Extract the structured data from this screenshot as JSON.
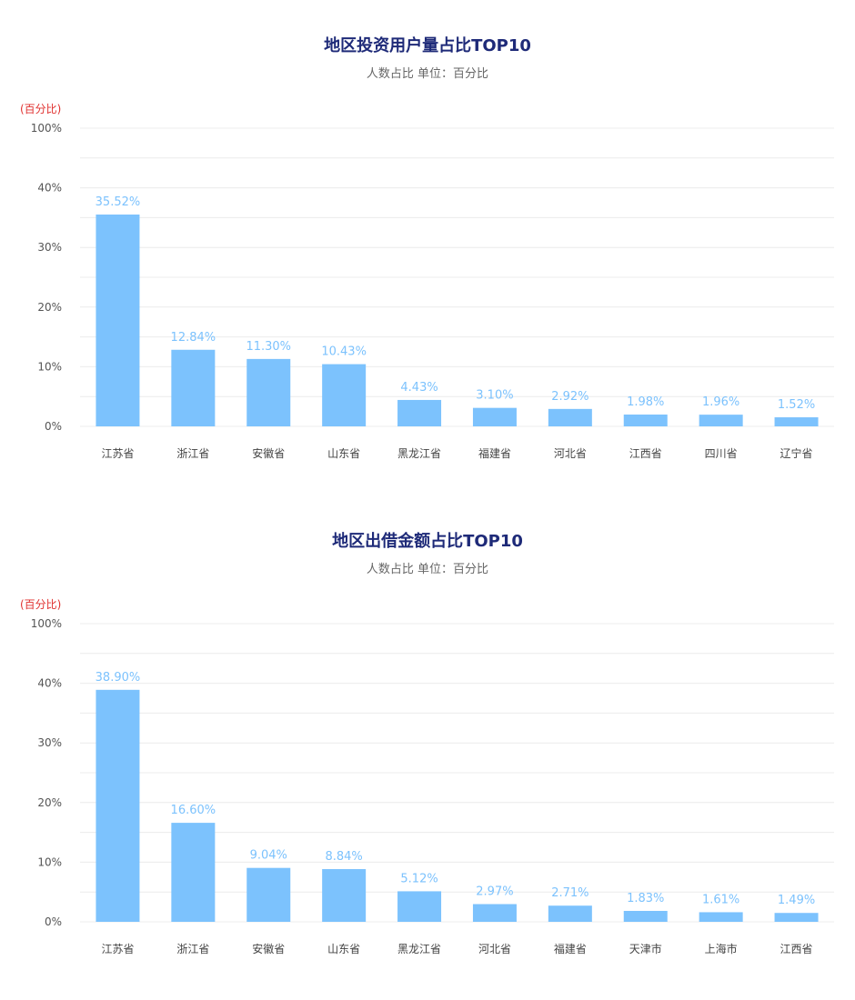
{
  "colors": {
    "bar": "#7cc2fd",
    "value_label": "#7cc2fd",
    "grid": "#ececec",
    "unit": "#e0312f",
    "title": "#1e2a78"
  },
  "chart_data": [
    {
      "type": "bar",
      "title": "地区投资用户量占比TOP10",
      "subtitle": "人数占比 单位：百分比",
      "unit_label": "(百分比)",
      "y_ticks": [
        "0%",
        "10%",
        "20%",
        "30%",
        "40%",
        "100%"
      ],
      "categories": [
        "江苏省",
        "浙江省",
        "安徽省",
        "山东省",
        "黑龙江省",
        "福建省",
        "河北省",
        "江西省",
        "四川省",
        "辽宁省"
      ],
      "values": [
        35.52,
        12.84,
        11.3,
        10.43,
        4.43,
        3.1,
        2.92,
        1.98,
        1.96,
        1.52
      ],
      "value_labels": [
        "35.52%",
        "12.84%",
        "11.30%",
        "10.43%",
        "4.43%",
        "3.10%",
        "2.92%",
        "1.98%",
        "1.96%",
        "1.52%"
      ],
      "grid": true
    },
    {
      "type": "bar",
      "title": "地区出借金额占比TOP10",
      "subtitle": "人数占比 单位：百分比",
      "unit_label": "(百分比)",
      "y_ticks": [
        "0%",
        "10%",
        "20%",
        "30%",
        "40%",
        "100%"
      ],
      "categories": [
        "江苏省",
        "浙江省",
        "安徽省",
        "山东省",
        "黑龙江省",
        "河北省",
        "福建省",
        "天津市",
        "上海市",
        "江西省"
      ],
      "values": [
        38.9,
        16.6,
        9.04,
        8.84,
        5.12,
        2.97,
        2.71,
        1.83,
        1.61,
        1.49
      ],
      "value_labels": [
        "38.90%",
        "16.60%",
        "9.04%",
        "8.84%",
        "5.12%",
        "2.97%",
        "2.71%",
        "1.83%",
        "1.61%",
        "1.49%"
      ],
      "grid": true
    }
  ]
}
